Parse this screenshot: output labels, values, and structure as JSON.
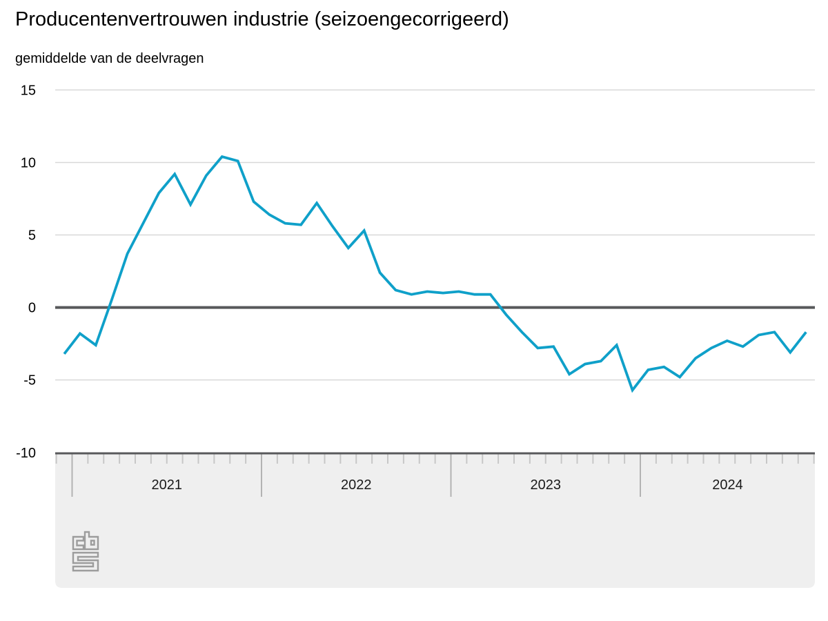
{
  "header": {
    "title": "Producentenvertrouwen industrie (seizoengecorrigeerd)",
    "subtitle": "gemiddelde van de deelvragen"
  },
  "chart_data": {
    "type": "line",
    "title": "Producentenvertrouwen industrie (seizoengecorrigeerd)",
    "subtitle": "gemiddelde van de deelvragen",
    "xlabel": "",
    "ylabel": "",
    "ylim": [
      -10,
      15
    ],
    "yticks": [
      15,
      10,
      5,
      0,
      -5,
      -10
    ],
    "grid": true,
    "legend_position": "none",
    "year_labels": [
      "2021",
      "2022",
      "2023",
      "2024"
    ],
    "x": [
      "2020-12",
      "2021-01",
      "2021-02",
      "2021-03",
      "2021-04",
      "2021-05",
      "2021-06",
      "2021-07",
      "2021-08",
      "2021-09",
      "2021-10",
      "2021-11",
      "2021-12",
      "2022-01",
      "2022-02",
      "2022-03",
      "2022-04",
      "2022-05",
      "2022-06",
      "2022-07",
      "2022-08",
      "2022-09",
      "2022-10",
      "2022-11",
      "2022-12",
      "2023-01",
      "2023-02",
      "2023-03",
      "2023-04",
      "2023-05",
      "2023-06",
      "2023-07",
      "2023-08",
      "2023-09",
      "2023-10",
      "2023-11",
      "2023-12",
      "2024-01",
      "2024-02",
      "2024-03",
      "2024-04",
      "2024-05",
      "2024-06",
      "2024-07",
      "2024-08",
      "2024-09",
      "2024-10",
      "2024-11"
    ],
    "series": [
      {
        "name": "producentenvertrouwen",
        "values": [
          -3.2,
          -1.8,
          -2.6,
          0.5,
          3.7,
          5.8,
          7.9,
          9.2,
          7.1,
          9.1,
          10.4,
          10.1,
          7.3,
          6.4,
          5.8,
          5.7,
          7.2,
          5.6,
          4.1,
          5.3,
          2.4,
          1.2,
          0.9,
          1.1,
          1.0,
          1.1,
          0.9,
          0.9,
          -0.5,
          -1.7,
          -2.8,
          -2.7,
          -4.6,
          -3.9,
          -3.7,
          -2.6,
          -5.7,
          -4.3,
          -4.1,
          -4.8,
          -3.5,
          -2.8,
          -2.3,
          -2.7,
          -1.9,
          -1.7,
          -3.1,
          -1.7
        ]
      }
    ],
    "colors": {
      "line": "#0fa0c9",
      "zero_line": "#58595b",
      "grid": "#d8d8d8",
      "band": "#efefef",
      "month_tick": "#c7c7c7",
      "year_tick": "#b3b3b3",
      "label": "#1a1a1a",
      "logo": "#9c9c9c"
    }
  },
  "logo": {
    "name": "CBS"
  }
}
